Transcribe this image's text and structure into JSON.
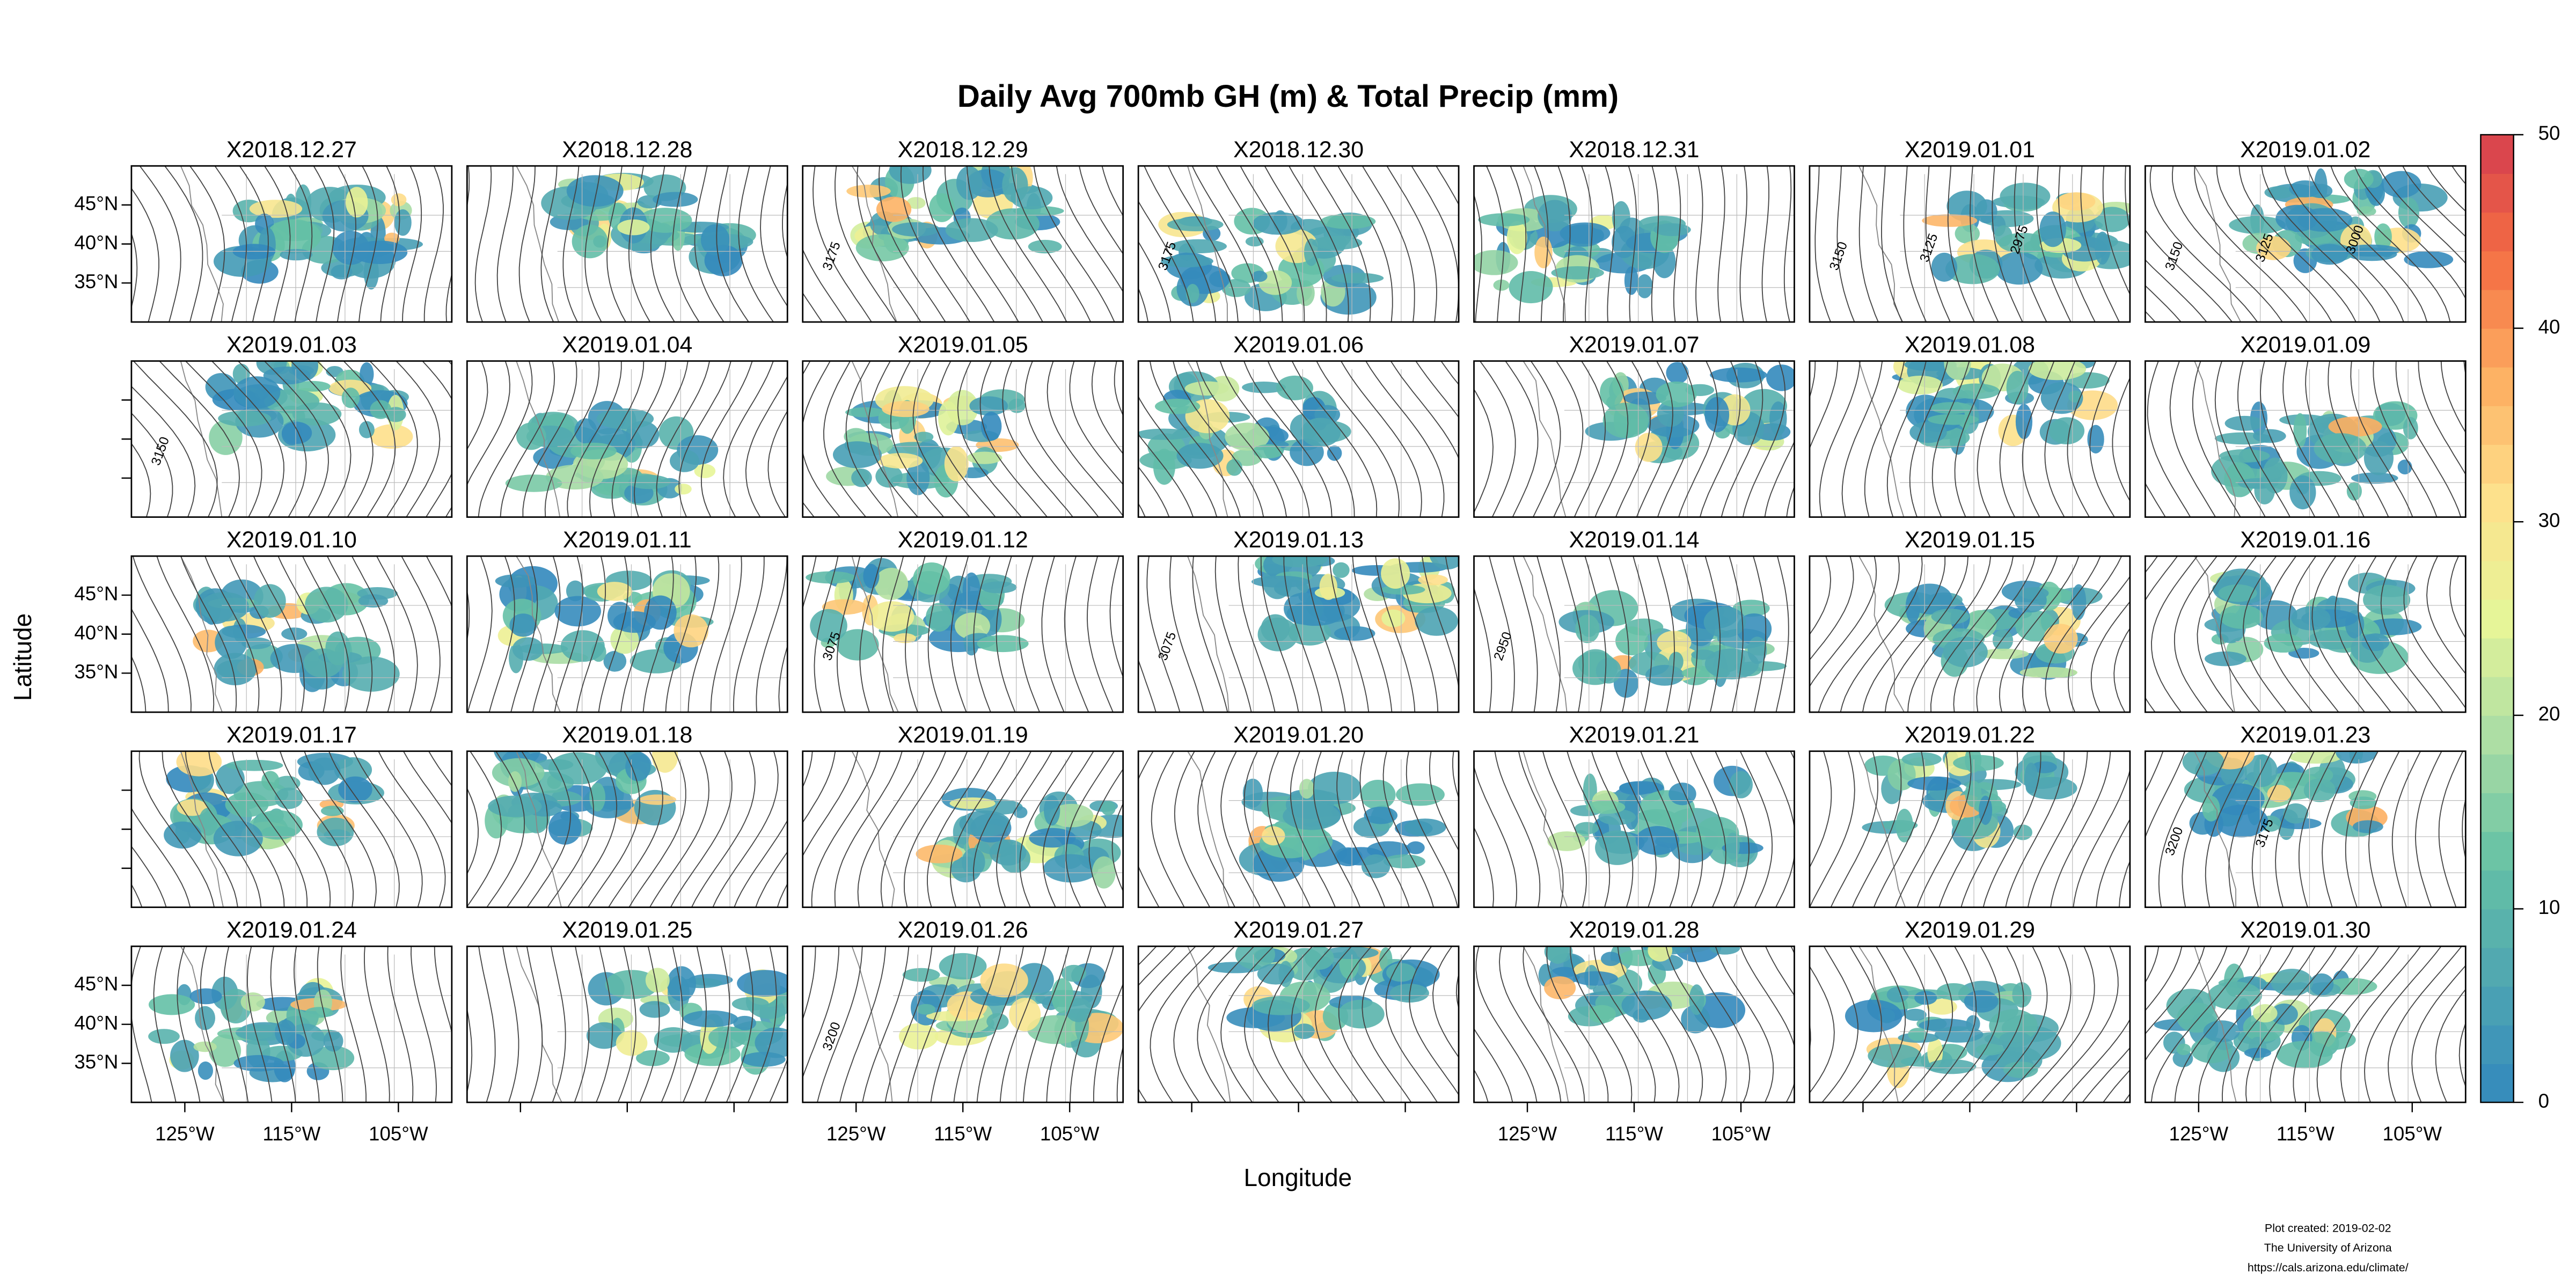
{
  "title": "Daily Avg 700mb GH (m) & Total Precip (mm)",
  "axes": {
    "x_label": "Longitude",
    "y_label": "Latitude",
    "xlim": [
      -130,
      -100
    ],
    "ylim": [
      30,
      50
    ],
    "xticks": [
      {
        "value": -125,
        "label": "125°W"
      },
      {
        "value": -115,
        "label": "115°W"
      },
      {
        "value": -105,
        "label": "105°W"
      }
    ],
    "yticks": [
      {
        "value": 45,
        "label": "45°N"
      },
      {
        "value": 40,
        "label": "40°N"
      },
      {
        "value": 35,
        "label": "35°N"
      }
    ]
  },
  "panels": [
    {
      "title": "X2018.12.27"
    },
    {
      "title": "X2018.12.28"
    },
    {
      "title": "X2018.12.29",
      "contour_labels": [
        "3175"
      ]
    },
    {
      "title": "X2018.12.30",
      "contour_labels": [
        "3175"
      ]
    },
    {
      "title": "X2018.12.31"
    },
    {
      "title": "X2019.01.01",
      "contour_labels": [
        "3150",
        "3125",
        "2975"
      ]
    },
    {
      "title": "X2019.01.02",
      "contour_labels": [
        "3150",
        "3125",
        "3000"
      ]
    },
    {
      "title": "X2019.01.03",
      "contour_labels": [
        "3150"
      ]
    },
    {
      "title": "X2019.01.04"
    },
    {
      "title": "X2019.01.05"
    },
    {
      "title": "X2019.01.06"
    },
    {
      "title": "X2019.01.07"
    },
    {
      "title": "X2019.01.08"
    },
    {
      "title": "X2019.01.09"
    },
    {
      "title": "X2019.01.10"
    },
    {
      "title": "X2019.01.11"
    },
    {
      "title": "X2019.01.12",
      "contour_labels": [
        "3075"
      ]
    },
    {
      "title": "X2019.01.13",
      "contour_labels": [
        "3075"
      ]
    },
    {
      "title": "X2019.01.14",
      "contour_labels": [
        "2950"
      ]
    },
    {
      "title": "X2019.01.15"
    },
    {
      "title": "X2019.01.16"
    },
    {
      "title": "X2019.01.17"
    },
    {
      "title": "X2019.01.18"
    },
    {
      "title": "X2019.01.19"
    },
    {
      "title": "X2019.01.20"
    },
    {
      "title": "X2019.01.21"
    },
    {
      "title": "X2019.01.22"
    },
    {
      "title": "X2019.01.23",
      "contour_labels": [
        "3200",
        "3175"
      ]
    },
    {
      "title": "X2019.01.24"
    },
    {
      "title": "X2019.01.25"
    },
    {
      "title": "X2019.01.26",
      "contour_labels": [
        "3200"
      ]
    },
    {
      "title": "X2019.01.27"
    },
    {
      "title": "X2019.01.28"
    },
    {
      "title": "X2019.01.29"
    },
    {
      "title": "X2019.01.30"
    }
  ],
  "colorbar": {
    "lim": [
      0,
      50
    ],
    "ticks": [
      0,
      10,
      20,
      30,
      40,
      50
    ],
    "colors": [
      "#3288bd",
      "#4fa6b2",
      "#66c2a5",
      "#abdda4",
      "#e6f598",
      "#fee08b",
      "#fdae61",
      "#f46d43",
      "#d53e4f"
    ]
  },
  "footer": [
    "Plot created: 2019-02-02",
    "The University of Arizona",
    "https://cals.arizona.edu/climate/"
  ]
}
